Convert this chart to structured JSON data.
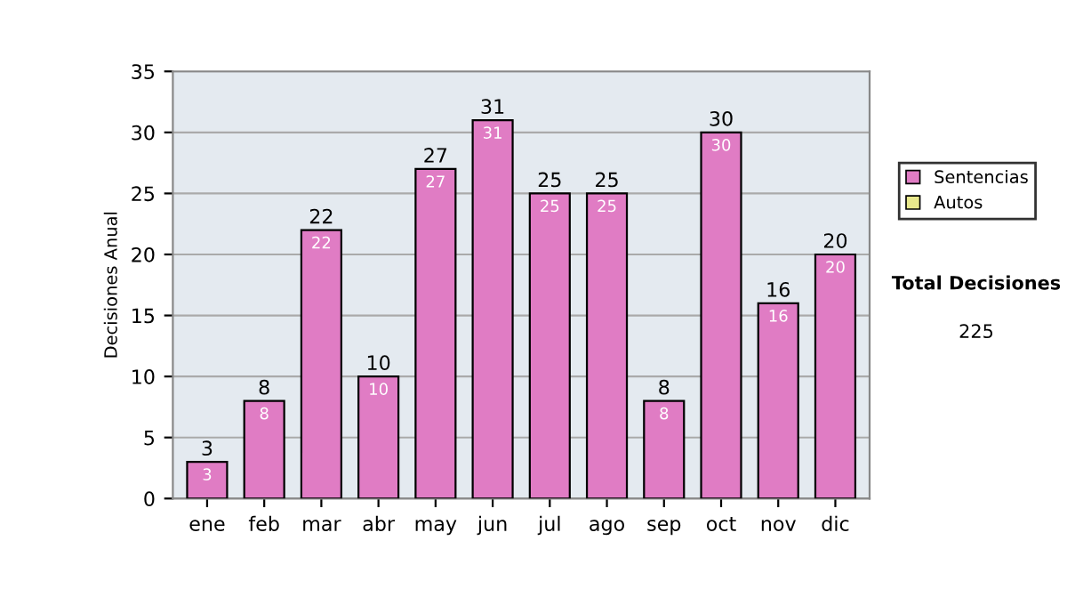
{
  "chart_data": {
    "type": "bar",
    "stacked": true,
    "ylabel": "Decisiones Anual",
    "categories": [
      "ene",
      "feb",
      "mar",
      "abr",
      "may",
      "jun",
      "jul",
      "ago",
      "sep",
      "oct",
      "nov",
      "dic"
    ],
    "series": [
      {
        "name": "Sentencias",
        "color": "#e07cc4",
        "values": [
          3,
          8,
          22,
          10,
          27,
          31,
          25,
          25,
          8,
          30,
          16,
          20
        ],
        "value_labels": [
          "3",
          "8",
          "22",
          "10",
          "27",
          "31",
          "25",
          "25",
          "8",
          "30",
          "16",
          "20"
        ]
      },
      {
        "name": "Autos",
        "color": "#e8e88c",
        "values": [
          0,
          0,
          0,
          0,
          0,
          0,
          0,
          0,
          0,
          0,
          0,
          0
        ]
      }
    ],
    "totals": [
      "3",
      "8",
      "22",
      "10",
      "27",
      "31",
      "25",
      "25",
      "8",
      "30",
      "16",
      "20"
    ],
    "ylim": [
      0,
      35
    ],
    "yticks": [
      0,
      5,
      10,
      15,
      20,
      25,
      30,
      35
    ],
    "grid": "y",
    "legend": "right",
    "annotations": [
      "Total Decisiones",
      "225"
    ]
  }
}
